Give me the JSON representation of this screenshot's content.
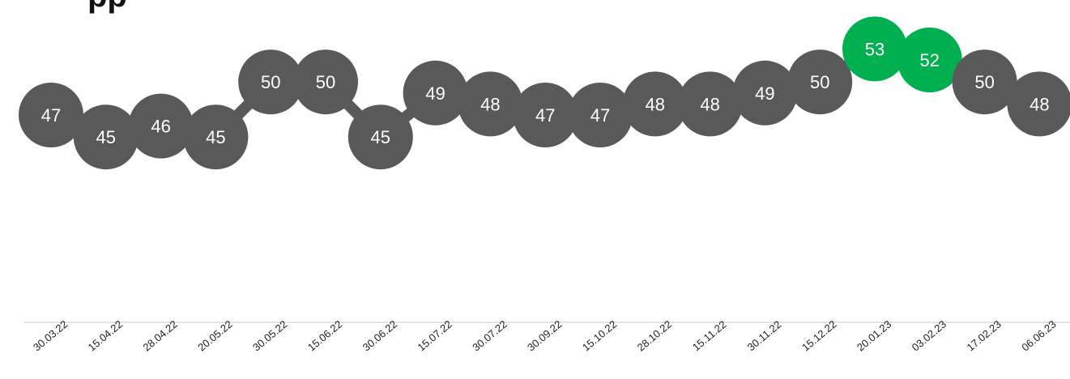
{
  "title_fragment": "pp",
  "colors": {
    "default_marker": "#595959",
    "highlight_marker": "#00b050",
    "connector": "#595959",
    "axis": "#d9d9d9",
    "marker_text": "#ffffff"
  },
  "chart_data": {
    "type": "line",
    "x": [
      "30.03.22",
      "15.04.22",
      "28.04.22",
      "20.05.22",
      "30.05.22",
      "15.06.22",
      "30.06.22",
      "15.07.22",
      "30.07.22",
      "30.09.22",
      "15.10.22",
      "28.10.22",
      "15.11.22",
      "30.11.22",
      "15.12.22",
      "20.01.23",
      "03.02.23",
      "17.02.23",
      "06.06.23"
    ],
    "series": [
      {
        "values": [
          47,
          45,
          46,
          45,
          50,
          50,
          45,
          49,
          48,
          47,
          47,
          48,
          48,
          49,
          50,
          53,
          52,
          50,
          48
        ],
        "highlighted": [
          "20.01.23",
          "03.02.23"
        ]
      }
    ],
    "data_labels": true,
    "markers": "large circles with value inside",
    "grid": false,
    "y_axis_visible": false,
    "x_tick_rotation": "diagonal"
  }
}
